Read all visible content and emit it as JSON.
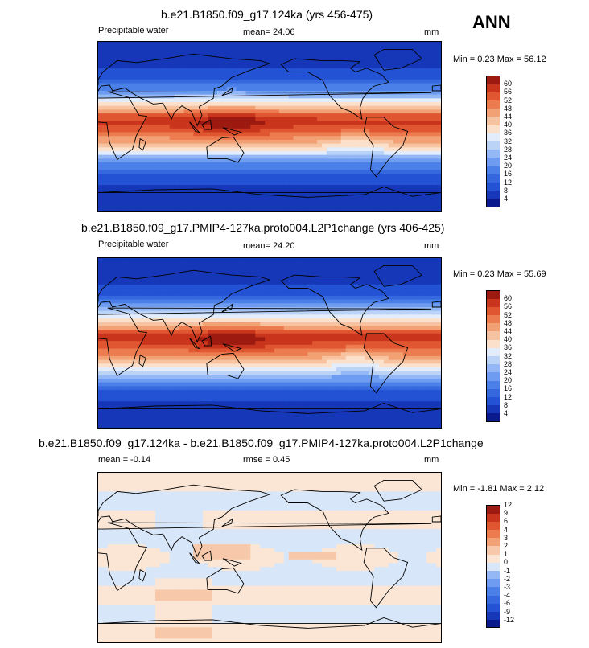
{
  "season": "ANN",
  "panels": [
    {
      "title": "b.e21.B1850.f09_g17.124ka (yrs 456-475)",
      "left_label": "Precipitable water",
      "center_label": "mean=  24.06",
      "units": "mm",
      "minmax": "Min =   0.23 Max =  56.12"
    },
    {
      "title": "b.e21.B1850.f09_g17.PMIP4-127ka.proto004.L2P1change (yrs 406-425)",
      "left_label": "Precipitable water",
      "center_label": "mean=  24.20",
      "units": "mm",
      "minmax": "Min =   0.23 Max =  55.69"
    },
    {
      "title": "b.e21.B1850.f09_g17.124ka - b.e21.B1850.f09_g17.PMIP4-127ka.proto004.L2P1change",
      "left_label": "mean =  -0.14",
      "center_label": "rmse =   0.45",
      "units": "mm",
      "minmax": "Min =  -1.81 Max =   2.12"
    }
  ],
  "chart_data": [
    {
      "type": "heatmap",
      "title": "b.e21.B1850.f09_g17.124ka (yrs 456-475)",
      "variable": "Precipitable water",
      "units": "mm",
      "mean": 24.06,
      "min": 0.23,
      "max": 56.12,
      "colorbar_levels": [
        4,
        8,
        12,
        16,
        20,
        24,
        28,
        32,
        36,
        40,
        44,
        48,
        52,
        56,
        60
      ],
      "colors": [
        "#0a1a8c",
        "#1537b8",
        "#2352d4",
        "#3568de",
        "#4a80e8",
        "#6e9cf0",
        "#94b8f5",
        "#bcd3f8",
        "#e2ecfb",
        "#fbe1cc",
        "#f7c29f",
        "#f2a174",
        "#ec7b4f",
        "#e05631",
        "#c8351c",
        "#9c1a10"
      ]
    },
    {
      "type": "heatmap",
      "title": "b.e21.B1850.f09_g17.PMIP4-127ka.proto004.L2P1change (yrs 406-425)",
      "variable": "Precipitable water",
      "units": "mm",
      "mean": 24.2,
      "min": 0.23,
      "max": 55.69,
      "colorbar_levels": [
        4,
        8,
        12,
        16,
        20,
        24,
        28,
        32,
        36,
        40,
        44,
        48,
        52,
        56,
        60
      ],
      "colors": [
        "#0a1a8c",
        "#1537b8",
        "#2352d4",
        "#3568de",
        "#4a80e8",
        "#6e9cf0",
        "#94b8f5",
        "#bcd3f8",
        "#e2ecfb",
        "#fbe1cc",
        "#f7c29f",
        "#f2a174",
        "#ec7b4f",
        "#e05631",
        "#c8351c",
        "#9c1a10"
      ]
    },
    {
      "type": "heatmap",
      "title": "b.e21.B1850.f09_g17.124ka - b.e21.B1850.f09_g17.PMIP4-127ka.proto004.L2P1change",
      "units": "mm",
      "mean": -0.14,
      "rmse": 0.45,
      "min": -1.81,
      "max": 2.12,
      "colorbar_levels": [
        -12,
        -9,
        -6,
        -4,
        -3,
        -2,
        -1,
        0,
        1,
        2,
        3,
        4,
        6,
        9,
        12
      ],
      "colors": [
        "#0a1a8c",
        "#1537b8",
        "#2352d4",
        "#3568de",
        "#4a80e8",
        "#6e9cf0",
        "#94b8f5",
        "#d7e6f8",
        "#fbe6d6",
        "#f7c9aa",
        "#f2a174",
        "#ec7b4f",
        "#e05631",
        "#c8351c",
        "#9c1a10"
      ]
    }
  ]
}
